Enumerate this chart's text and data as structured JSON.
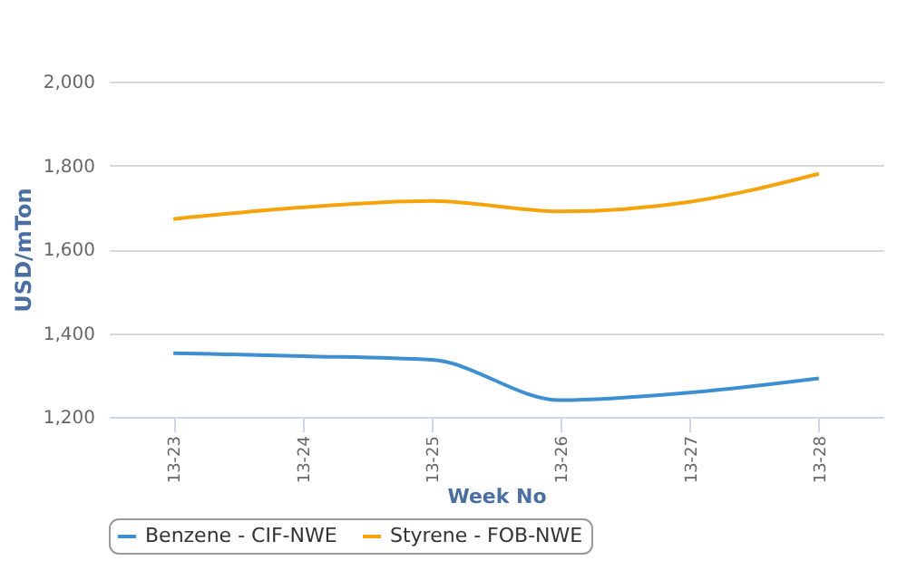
{
  "chart_data": {
    "type": "line",
    "xlabel": "Week No",
    "ylabel": "USD/mTon",
    "categories": [
      "13-23",
      "13-24",
      "13-25",
      "13-26",
      "13-27",
      "13-28"
    ],
    "series": [
      {
        "name": "Benzene - CIF-NWE",
        "color": "#3d8fd1",
        "values": [
          1352,
          1345,
          1336,
          1240,
          1258,
          1292
        ]
      },
      {
        "name": "Styrene - FOB-NWE",
        "color": "#f5a30a",
        "values": [
          1672,
          1700,
          1715,
          1690,
          1713,
          1780
        ]
      }
    ],
    "ylim": [
      1200,
      2000
    ],
    "yticks": [
      {
        "value": 1200,
        "label": "1,200"
      },
      {
        "value": 1400,
        "label": "1,400"
      },
      {
        "value": 1600,
        "label": "1,600"
      },
      {
        "value": 1800,
        "label": "1,800"
      },
      {
        "value": 2000,
        "label": "2,000"
      }
    ],
    "grid": "y",
    "legend": "bottom",
    "marker": "none",
    "line_style": "solid"
  }
}
